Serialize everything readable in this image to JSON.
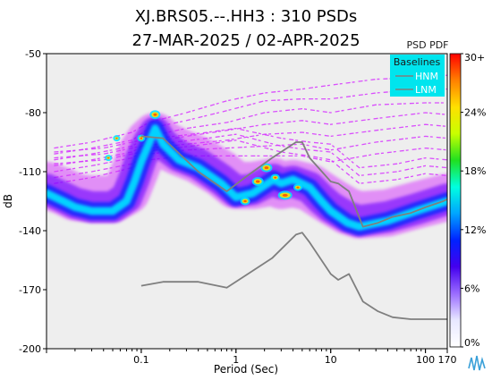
{
  "chart_data": {
    "type": "heatmap",
    "title": "XJ.BRS05.--.HH3 : 310 PSDs",
    "subtitle": "27-MAR-2025 / 02-APR-2025",
    "xlabel": "Period (Sec)",
    "ylabel": "dB",
    "x_scale": "log",
    "xlim": [
      0.01,
      170
    ],
    "ylim": [
      -200,
      -50
    ],
    "x_ticks": [
      {
        "value": 0.1,
        "label": "0.1"
      },
      {
        "value": 1,
        "label": "1"
      },
      {
        "value": 10,
        "label": "10"
      },
      {
        "value": 100,
        "label": "100"
      },
      {
        "value": 170,
        "label": "170"
      }
    ],
    "y_ticks": [
      {
        "value": -50,
        "label": "-50"
      },
      {
        "value": -80,
        "label": "-80"
      },
      {
        "value": -110,
        "label": "-110"
      },
      {
        "value": -140,
        "label": "-140"
      },
      {
        "value": -170,
        "label": "-170"
      },
      {
        "value": -200,
        "label": "-200"
      }
    ],
    "background": "#eeeeee",
    "legend": {
      "title": "Baselines",
      "items": [
        "HNM",
        "LNM"
      ],
      "placement": "top-right",
      "background": "#00e5ee"
    },
    "colorbar": {
      "label": "PSD PDF",
      "ticks": [
        "30+",
        "24%",
        "18%",
        "12%",
        "6%",
        "0%"
      ],
      "colors": [
        "#ffffff",
        "#e8e8ff",
        "#9a6cff",
        "#4400ee",
        "#0022ff",
        "#00a5ff",
        "#00ffe0",
        "#20e020",
        "#c8ff00",
        "#ffe000",
        "#ff8000",
        "#ff0000"
      ]
    },
    "series": [
      {
        "name": "HNM",
        "color": "#7f7f7f",
        "points": [
          [
            0.1,
            -92
          ],
          [
            0.17,
            -93
          ],
          [
            0.4,
            -110
          ],
          [
            0.8,
            -120
          ],
          [
            1.24,
            -113
          ],
          [
            2.4,
            -103
          ],
          [
            4.3,
            -95
          ],
          [
            5,
            -95
          ],
          [
            6,
            -103
          ],
          [
            10,
            -115
          ],
          [
            12,
            -116
          ],
          [
            15.6,
            -120
          ],
          [
            21.9,
            -138
          ],
          [
            31.6,
            -136
          ],
          [
            45,
            -133
          ],
          [
            70,
            -131
          ],
          [
            101,
            -128
          ],
          [
            154,
            -125
          ],
          [
            170,
            -124
          ]
        ]
      },
      {
        "name": "LNM",
        "color": "#7f7f7f",
        "points": [
          [
            0.1,
            -168
          ],
          [
            0.17,
            -166
          ],
          [
            0.4,
            -166
          ],
          [
            0.8,
            -169
          ],
          [
            1.24,
            -163
          ],
          [
            2.4,
            -154
          ],
          [
            4.3,
            -142
          ],
          [
            5,
            -141
          ],
          [
            6,
            -146
          ],
          [
            10,
            -162
          ],
          [
            12,
            -165
          ],
          [
            15.6,
            -162
          ],
          [
            21.9,
            -176
          ],
          [
            31.6,
            -181
          ],
          [
            45,
            -184
          ],
          [
            70,
            -185
          ],
          [
            101,
            -185
          ],
          [
            154,
            -185
          ],
          [
            170,
            -185
          ]
        ]
      }
    ],
    "density_bands": [
      {
        "points": [
          [
            0.01,
            -121
          ],
          [
            0.015,
            -125
          ],
          [
            0.02,
            -128
          ],
          [
            0.03,
            -130
          ],
          [
            0.05,
            -130
          ],
          [
            0.07,
            -125
          ],
          [
            0.085,
            -115
          ],
          [
            0.1,
            -105
          ],
          [
            0.12,
            -96
          ],
          [
            0.14,
            -88
          ],
          [
            0.17,
            -96
          ],
          [
            0.25,
            -104
          ],
          [
            0.4,
            -108
          ],
          [
            0.7,
            -116
          ],
          [
            1,
            -123
          ],
          [
            1.5,
            -121
          ],
          [
            2,
            -117
          ],
          [
            2.5,
            -114
          ],
          [
            3,
            -116
          ],
          [
            4,
            -114
          ],
          [
            6,
            -118
          ],
          [
            8,
            -125
          ],
          [
            10,
            -130
          ],
          [
            15,
            -136
          ],
          [
            20,
            -138
          ],
          [
            40,
            -135
          ],
          [
            80,
            -130
          ],
          [
            170,
            -125
          ]
        ],
        "spread": 4,
        "color": "#00e5ff",
        "opacity": 0.9
      },
      {
        "points": [
          [
            0.01,
            -121
          ],
          [
            0.015,
            -125
          ],
          [
            0.02,
            -128
          ],
          [
            0.03,
            -130
          ],
          [
            0.05,
            -130
          ],
          [
            0.07,
            -125
          ],
          [
            0.085,
            -115
          ],
          [
            0.1,
            -105
          ],
          [
            0.12,
            -96
          ],
          [
            0.14,
            -88
          ],
          [
            0.17,
            -96
          ],
          [
            0.25,
            -104
          ],
          [
            0.4,
            -108
          ],
          [
            0.7,
            -116
          ],
          [
            1,
            -123
          ],
          [
            1.5,
            -121
          ],
          [
            2,
            -117
          ],
          [
            2.5,
            -114
          ],
          [
            3,
            -116
          ],
          [
            4,
            -114
          ],
          [
            6,
            -118
          ],
          [
            8,
            -125
          ],
          [
            10,
            -130
          ],
          [
            15,
            -136
          ],
          [
            20,
            -138
          ],
          [
            40,
            -135
          ],
          [
            80,
            -130
          ],
          [
            170,
            -125
          ]
        ],
        "spread": 9,
        "color": "#0022ff",
        "opacity": 0.75
      },
      {
        "points": [
          [
            0.01,
            -119
          ],
          [
            0.015,
            -123
          ],
          [
            0.02,
            -126
          ],
          [
            0.03,
            -128
          ],
          [
            0.05,
            -128
          ],
          [
            0.07,
            -123
          ],
          [
            0.085,
            -113
          ],
          [
            0.1,
            -103
          ],
          [
            0.12,
            -95
          ],
          [
            0.14,
            -90
          ],
          [
            0.17,
            -96
          ],
          [
            0.25,
            -102
          ],
          [
            0.4,
            -106
          ],
          [
            0.7,
            -114
          ],
          [
            1,
            -120
          ],
          [
            1.5,
            -119
          ],
          [
            2,
            -116
          ],
          [
            2.5,
            -114
          ],
          [
            3,
            -116
          ],
          [
            4,
            -115
          ],
          [
            6,
            -118
          ],
          [
            8,
            -124
          ],
          [
            10,
            -128
          ],
          [
            15,
            -133
          ],
          [
            20,
            -135
          ],
          [
            40,
            -133
          ],
          [
            80,
            -129
          ],
          [
            170,
            -124
          ]
        ],
        "spread": 16,
        "color": "#6a00ff",
        "opacity": 0.6
      },
      {
        "points": [
          [
            0.01,
            -117
          ],
          [
            0.015,
            -120
          ],
          [
            0.02,
            -123
          ],
          [
            0.03,
            -124
          ],
          [
            0.05,
            -124
          ],
          [
            0.07,
            -120
          ],
          [
            0.085,
            -110
          ],
          [
            0.1,
            -101
          ],
          [
            0.12,
            -95
          ],
          [
            0.14,
            -92
          ],
          [
            0.17,
            -96
          ],
          [
            0.25,
            -100
          ],
          [
            0.4,
            -104
          ],
          [
            0.7,
            -111
          ],
          [
            1,
            -117
          ],
          [
            1.5,
            -117
          ],
          [
            2,
            -116
          ],
          [
            2.5,
            -115
          ],
          [
            3,
            -117
          ],
          [
            4,
            -116
          ],
          [
            6,
            -118
          ],
          [
            8,
            -122
          ],
          [
            10,
            -125
          ],
          [
            15,
            -130
          ],
          [
            20,
            -132
          ],
          [
            40,
            -131
          ],
          [
            80,
            -127
          ],
          [
            170,
            -123
          ]
        ],
        "spread": 24,
        "color": "#d633ff",
        "opacity": 0.5
      }
    ],
    "stripes": [
      {
        "points": [
          [
            0.012,
            -98
          ],
          [
            0.03,
            -95
          ],
          [
            0.08,
            -90
          ],
          [
            0.12,
            -85
          ],
          [
            0.3,
            -80
          ],
          [
            0.8,
            -74
          ],
          [
            2,
            -70
          ],
          [
            5,
            -68
          ],
          [
            10,
            -66
          ],
          [
            30,
            -63
          ],
          [
            100,
            -62
          ],
          [
            170,
            -61
          ]
        ]
      },
      {
        "points": [
          [
            0.012,
            -101
          ],
          [
            0.03,
            -98
          ],
          [
            0.08,
            -94
          ],
          [
            0.12,
            -88
          ],
          [
            0.3,
            -84
          ],
          [
            0.8,
            -79
          ],
          [
            2,
            -74
          ],
          [
            5,
            -73
          ],
          [
            10,
            -73
          ],
          [
            30,
            -70
          ],
          [
            100,
            -68
          ],
          [
            170,
            -68
          ]
        ]
      },
      {
        "points": [
          [
            0.012,
            -104
          ],
          [
            0.03,
            -101
          ],
          [
            0.08,
            -97
          ],
          [
            0.12,
            -92
          ],
          [
            0.3,
            -88
          ],
          [
            0.8,
            -85
          ],
          [
            2,
            -80
          ],
          [
            5,
            -78
          ],
          [
            10,
            -80
          ],
          [
            30,
            -76
          ],
          [
            100,
            -75
          ],
          [
            170,
            -75
          ]
        ]
      },
      {
        "points": [
          [
            0.012,
            -107
          ],
          [
            0.03,
            -104
          ],
          [
            0.08,
            -100
          ],
          [
            0.12,
            -95
          ],
          [
            0.3,
            -92
          ],
          [
            0.8,
            -89
          ],
          [
            2,
            -86
          ],
          [
            5,
            -84
          ],
          [
            10,
            -86
          ],
          [
            30,
            -83
          ],
          [
            100,
            -80
          ],
          [
            170,
            -81
          ]
        ]
      },
      {
        "points": [
          [
            0.012,
            -110
          ],
          [
            0.03,
            -107
          ],
          [
            0.08,
            -103
          ],
          [
            0.12,
            -98
          ],
          [
            0.3,
            -96
          ],
          [
            0.8,
            -94
          ],
          [
            2,
            -91
          ],
          [
            5,
            -90
          ],
          [
            10,
            -92
          ],
          [
            30,
            -89
          ],
          [
            100,
            -86
          ],
          [
            170,
            -87
          ]
        ]
      },
      {
        "points": [
          [
            0.012,
            -113
          ],
          [
            0.03,
            -110
          ],
          [
            0.08,
            -106
          ],
          [
            0.12,
            -101
          ],
          [
            0.3,
            -99
          ],
          [
            0.8,
            -98
          ],
          [
            2,
            -97
          ],
          [
            5,
            -96
          ],
          [
            10,
            -99
          ],
          [
            30,
            -95
          ],
          [
            100,
            -92
          ],
          [
            170,
            -93
          ]
        ]
      },
      {
        "points": [
          [
            0.012,
            -116
          ],
          [
            0.03,
            -113
          ],
          [
            0.08,
            -108
          ],
          [
            0.12,
            -104
          ],
          [
            0.3,
            -102
          ],
          [
            0.8,
            -102
          ],
          [
            2,
            -102
          ],
          [
            5,
            -102
          ],
          [
            10,
            -105
          ],
          [
            30,
            -101
          ],
          [
            100,
            -98
          ],
          [
            170,
            -99
          ]
        ]
      },
      {
        "points": [
          [
            0.012,
            -100
          ],
          [
            0.04,
            -98
          ],
          [
            0.1,
            -94
          ],
          [
            0.5,
            -90
          ],
          [
            1,
            -88
          ],
          [
            3,
            -93
          ],
          [
            6,
            -95
          ],
          [
            10,
            -96
          ],
          [
            20,
            -108
          ],
          [
            50,
            -106
          ],
          [
            100,
            -103
          ],
          [
            170,
            -104
          ]
        ]
      },
      {
        "points": [
          [
            0.012,
            -103
          ],
          [
            0.04,
            -101
          ],
          [
            0.1,
            -97
          ],
          [
            0.5,
            -93
          ],
          [
            1,
            -91
          ],
          [
            3,
            -97
          ],
          [
            6,
            -99
          ],
          [
            10,
            -100
          ],
          [
            20,
            -112
          ],
          [
            50,
            -110
          ],
          [
            100,
            -107
          ],
          [
            170,
            -108
          ]
        ]
      },
      {
        "points": [
          [
            0.012,
            -106
          ],
          [
            0.04,
            -104
          ],
          [
            0.1,
            -100
          ],
          [
            0.5,
            -96
          ],
          [
            1,
            -94
          ],
          [
            3,
            -100
          ],
          [
            6,
            -102
          ],
          [
            10,
            -104
          ],
          [
            20,
            -116
          ],
          [
            50,
            -114
          ],
          [
            100,
            -111
          ],
          [
            170,
            -112
          ]
        ]
      }
    ],
    "hotspots": [
      {
        "x": 0.14,
        "y": -81,
        "w": 8,
        "h": 6
      },
      {
        "x": 0.1,
        "y": -93,
        "w": 5,
        "h": 4
      },
      {
        "x": 0.055,
        "y": -93,
        "w": 4,
        "h": 3
      },
      {
        "x": 0.045,
        "y": -103,
        "w": 4,
        "h": 3
      },
      {
        "x": 2.1,
        "y": -108,
        "w": 9,
        "h": 6
      },
      {
        "x": 1.7,
        "y": -115,
        "w": 9,
        "h": 6
      },
      {
        "x": 2.6,
        "y": -113,
        "w": 6,
        "h": 4
      },
      {
        "x": 3.3,
        "y": -122,
        "w": 12,
        "h": 6
      },
      {
        "x": 4.5,
        "y": -118,
        "w": 6,
        "h": 4
      },
      {
        "x": 1.25,
        "y": -125,
        "w": 7,
        "h": 5
      }
    ]
  }
}
